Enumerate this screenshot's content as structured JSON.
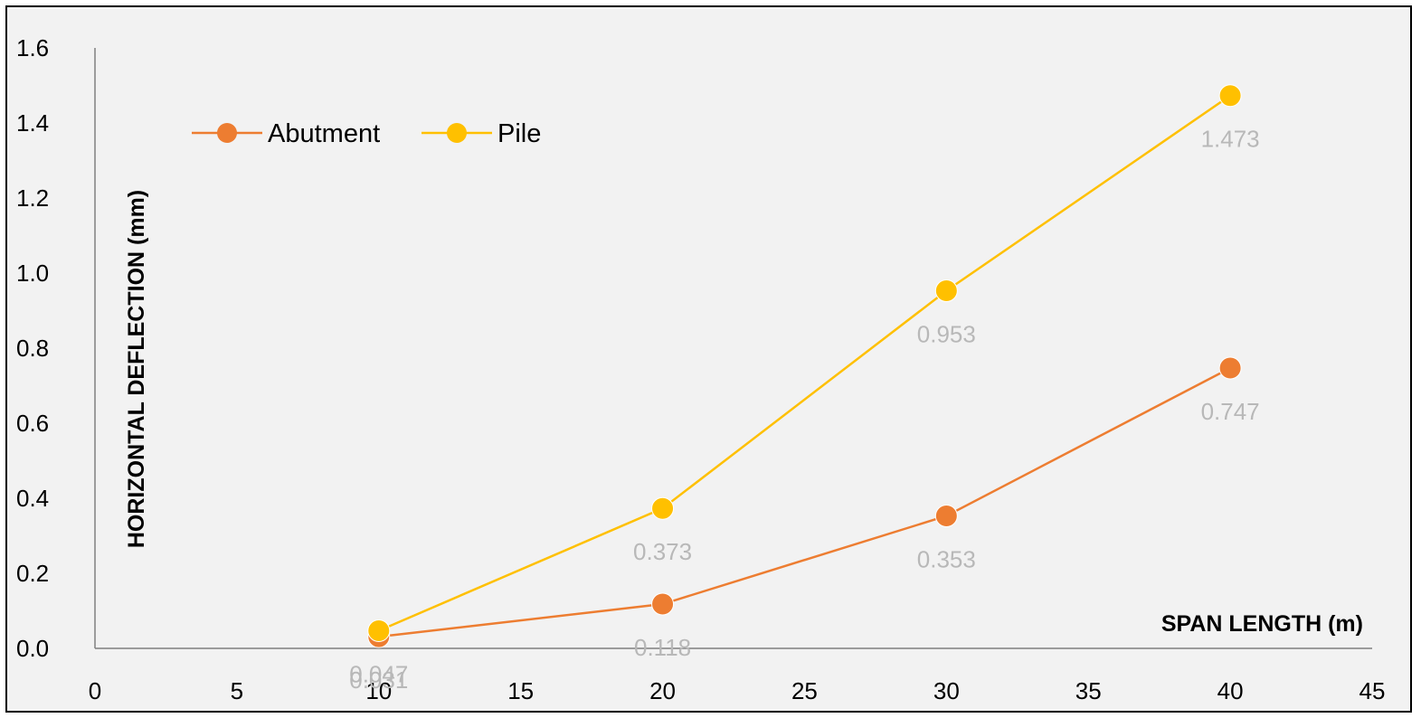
{
  "chart_data": {
    "type": "line",
    "xlabel": "SPAN LENGTH (m)",
    "ylabel": "HORIZONTAL DEFLECTION (mm)",
    "xlim": [
      0,
      45
    ],
    "ylim": [
      0,
      1.6
    ],
    "x_ticks": [
      0,
      5,
      10,
      15,
      20,
      25,
      30,
      35,
      40,
      45
    ],
    "y_ticks": [
      "0.0",
      "0.2",
      "0.4",
      "0.6",
      "0.8",
      "1.0",
      "1.2",
      "1.4",
      "1.6"
    ],
    "grid": false,
    "legend_position": "top-left",
    "series": [
      {
        "name": "Abutment",
        "color": "#ed7d31",
        "x": [
          10,
          20,
          30,
          40
        ],
        "values": [
          0.031,
          0.118,
          0.353,
          0.747
        ],
        "labels": [
          "0.031",
          "0.118",
          "0.353",
          "0.747"
        ]
      },
      {
        "name": "Pile",
        "color": "#ffc000",
        "x": [
          10,
          20,
          30,
          40
        ],
        "values": [
          0.047,
          0.373,
          0.953,
          1.473
        ],
        "labels": [
          "0.047",
          "0.373",
          "0.953",
          "1.473"
        ]
      }
    ]
  }
}
